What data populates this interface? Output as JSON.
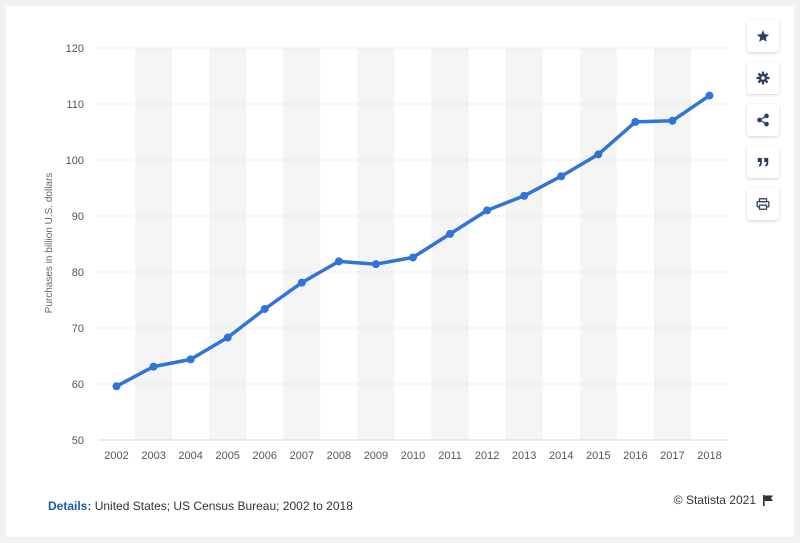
{
  "chart_data": {
    "type": "line",
    "title": "",
    "xlabel": "",
    "ylabel": "Purchases in billion U.S. dollars",
    "ylim": [
      50,
      120
    ],
    "yticks": [
      50,
      60,
      70,
      80,
      90,
      100,
      110,
      120
    ],
    "grid": true,
    "categories": [
      "2002",
      "2003",
      "2004",
      "2005",
      "2006",
      "2007",
      "2008",
      "2009",
      "2010",
      "2011",
      "2012",
      "2013",
      "2014",
      "2015",
      "2016",
      "2017",
      "2018"
    ],
    "series": [
      {
        "values": [
          59.6,
          63.1,
          64.4,
          68.3,
          73.4,
          78.1,
          81.9,
          81.4,
          82.6,
          86.8,
          91.0,
          93.6,
          97.1,
          101.0,
          106.8,
          107.0,
          111.5
        ]
      }
    ],
    "line_color": "#2f74d6"
  },
  "footer": {
    "details_label": "Details:",
    "details_text": "United States; US Census Bureau; 2002 to 2018",
    "credit": "© Statista 2021"
  },
  "toolbar": {
    "icons": [
      "star-icon",
      "gear-icon",
      "share-icon",
      "quote-icon",
      "print-icon"
    ]
  }
}
